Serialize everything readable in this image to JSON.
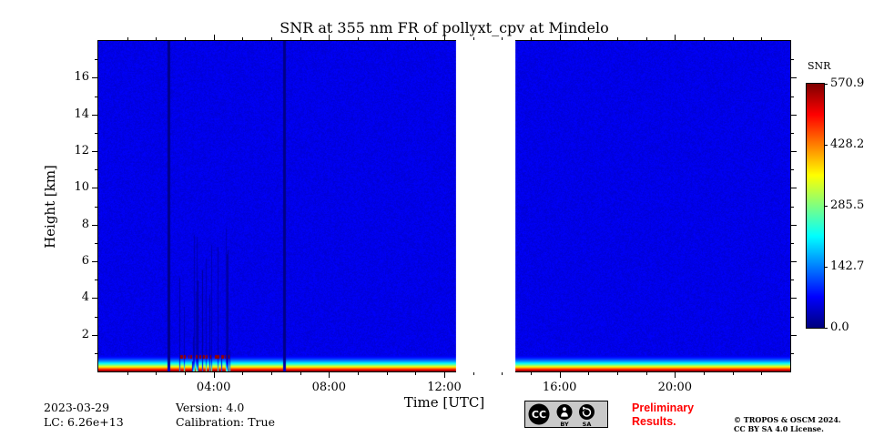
{
  "title": "SNR at 355 nm FR of pollyxt_cpv at Mindelo",
  "axes": {
    "xlabel": "Time [UTC]",
    "ylabel": "Height [km]",
    "x_ticks": [
      "04:00",
      "08:00",
      "12:00",
      "16:00",
      "20:00"
    ],
    "x_tick_hours": [
      4,
      8,
      12,
      16,
      20
    ],
    "y_ticks": [
      "2",
      "4",
      "6",
      "8",
      "10",
      "12",
      "14",
      "16"
    ],
    "y_tick_km": [
      2,
      4,
      6,
      8,
      10,
      12,
      14,
      16
    ]
  },
  "colorbar": {
    "label": "SNR",
    "ticks": [
      "570.9",
      "428.2",
      "285.5",
      "142.7",
      "0.0"
    ],
    "tick_values": [
      570.9,
      428.2,
      285.5,
      142.7,
      0.0
    ]
  },
  "chart_data": {
    "type": "heatmap",
    "title": "SNR at 355 nm FR of pollyxt_cpv at Mindelo",
    "x_axis": {
      "label": "Time [UTC]",
      "unit": "hours UTC",
      "range_hours": [
        0,
        24
      ],
      "tick_hours": [
        4,
        8,
        12,
        16,
        20
      ]
    },
    "y_axis": {
      "label": "Height [km]",
      "range_km": [
        0,
        18
      ],
      "tick_km": [
        2,
        4,
        6,
        8,
        10,
        12,
        14,
        16
      ]
    },
    "value": {
      "name": "SNR",
      "min": 0,
      "max": 570.9,
      "colormap": "jet"
    },
    "colorbar_tick_values": [
      0.0,
      142.7,
      285.5,
      428.2,
      570.9
    ],
    "background_snr": 58,
    "surface_band": {
      "peak_snr": 570,
      "scale_height_km": 0.45,
      "description": "strong near-surface SNR layer below ~1 km: red at ground grading through orange, yellow, green and cyan into the blue background"
    },
    "data_gap_hours": [
      12.42,
      14.45
    ],
    "low_snr_columns_hours": [
      2.46,
      6.45
    ],
    "noisy_profile_period_hours": [
      2.75,
      4.58
    ],
    "speckle_line": {
      "hours": [
        2.85,
        4.55
      ],
      "height_km": [
        0.7,
        0.9
      ],
      "snr": 560
    }
  },
  "footer": {
    "date": "2023-03-29",
    "lidar_constant": "LC: 6.26e+13",
    "version": "Version: 4.0",
    "calibration": "Calibration: True",
    "preliminary_line1": "Preliminary",
    "preliminary_line2": "Results.",
    "copyright_line1": "© TROPOS & OSCM 2024.",
    "copyright_line2": "CC BY SA 4.0 License.",
    "badge": {
      "cc": "CC",
      "by": "BY",
      "sa": "SA"
    }
  },
  "colors": {
    "background": "#ffffff",
    "frame": "#000000",
    "preliminary_text": "#ff0000",
    "colormap": "jet"
  }
}
